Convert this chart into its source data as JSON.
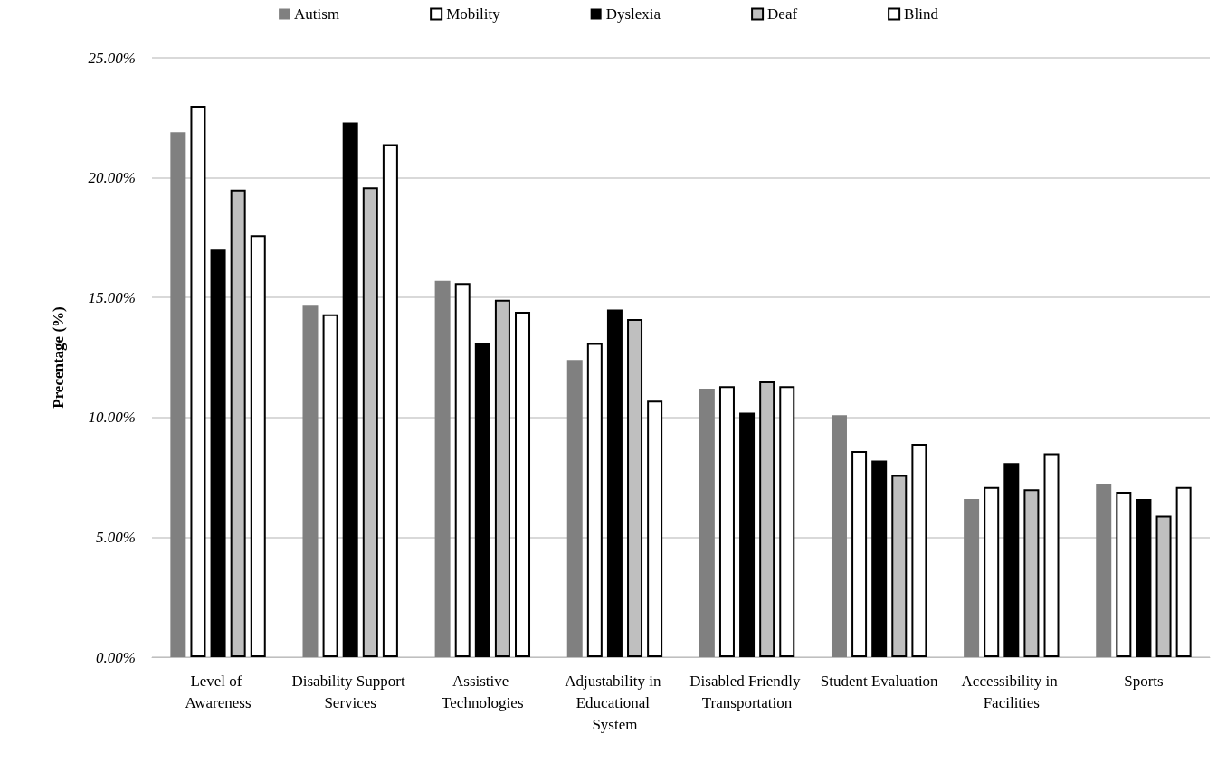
{
  "chart_data": {
    "type": "bar",
    "ylabel": "Precentage (%)",
    "categories": [
      "Level of Awareness",
      "Disability Support Services",
      "Assistive Technologies",
      "Adjustability in Educational System",
      "Disabled Friendly Transportation",
      "Student Evaluation",
      "Accessibility in Facilities",
      "Sports"
    ],
    "series": [
      {
        "name": "Autism",
        "color": "#808080",
        "values": [
          21.9,
          14.7,
          15.7,
          12.4,
          11.2,
          10.1,
          6.6,
          7.2
        ]
      },
      {
        "name": "Mobility",
        "color": "#ffffff",
        "values": [
          23.0,
          14.3,
          15.6,
          13.1,
          11.3,
          8.6,
          7.1,
          6.9
        ]
      },
      {
        "name": "Dyslexia",
        "color": "#000000",
        "values": [
          17.0,
          22.3,
          13.1,
          14.5,
          10.2,
          8.2,
          8.1,
          6.6
        ]
      },
      {
        "name": "Deaf",
        "color": "#bfbfbf",
        "values": [
          19.5,
          19.6,
          14.9,
          14.1,
          11.5,
          7.6,
          7.0,
          5.9
        ]
      },
      {
        "name": "Blind",
        "color": "#ffffff",
        "values": [
          17.6,
          21.4,
          14.4,
          10.7,
          11.3,
          8.9,
          8.5,
          7.1
        ]
      }
    ],
    "ylim": [
      0,
      25
    ],
    "yticks": [
      {
        "value": 0,
        "label": "0.00%"
      },
      {
        "value": 5,
        "label": "5.00%"
      },
      {
        "value": 10,
        "label": "10.00%"
      },
      {
        "value": 15,
        "label": "15.00%"
      },
      {
        "value": 20,
        "label": "20.00%"
      },
      {
        "value": 25,
        "label": "25.00%"
      }
    ],
    "grid": "y",
    "legend": "top"
  }
}
